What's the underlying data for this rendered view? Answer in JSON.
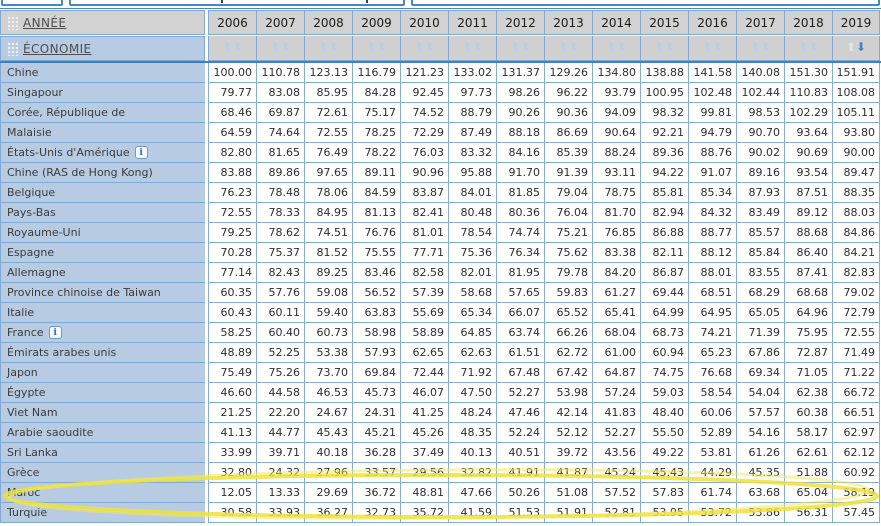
{
  "table": {
    "annee_label": "ANNÉE",
    "economie_label": "ÉCONOMIE",
    "years": [
      "2006",
      "2007",
      "2008",
      "2009",
      "2010",
      "2011",
      "2012",
      "2013",
      "2014",
      "2015",
      "2016",
      "2017",
      "2018",
      "2019"
    ],
    "sort": {
      "active_year": "2019",
      "direction": "desc"
    },
    "info_icon_label": "i",
    "rows": [
      {
        "label": "Chine",
        "info": false,
        "values": [
          "100.00",
          "110.78",
          "123.13",
          "116.79",
          "121.23",
          "133.02",
          "131.37",
          "129.26",
          "134.80",
          "138.88",
          "141.58",
          "140.08",
          "151.30",
          "151.91"
        ]
      },
      {
        "label": "Singapour",
        "info": false,
        "values": [
          "79.77",
          "83.08",
          "85.95",
          "84.28",
          "92.45",
          "97.73",
          "98.26",
          "96.22",
          "93.79",
          "100.95",
          "102.48",
          "102.44",
          "110.83",
          "108.08"
        ]
      },
      {
        "label": "Corée, République de",
        "info": false,
        "values": [
          "68.46",
          "69.87",
          "72.61",
          "75.17",
          "74.52",
          "88.79",
          "90.26",
          "90.36",
          "94.09",
          "98.32",
          "99.81",
          "98.53",
          "102.29",
          "105.11"
        ]
      },
      {
        "label": "Malaisie",
        "info": false,
        "values": [
          "64.59",
          "74.64",
          "72.55",
          "78.25",
          "72.29",
          "87.49",
          "88.18",
          "86.69",
          "90.64",
          "92.21",
          "94.79",
          "90.70",
          "93.64",
          "93.80"
        ]
      },
      {
        "label": "États-Unis d'Amérique",
        "info": true,
        "values": [
          "82.80",
          "81.65",
          "76.49",
          "78.22",
          "76.03",
          "83.32",
          "84.16",
          "85.39",
          "88.24",
          "89.36",
          "88.76",
          "90.02",
          "90.69",
          "90.00"
        ]
      },
      {
        "label": "Chine (RAS de Hong Kong)",
        "info": false,
        "values": [
          "83.88",
          "89.86",
          "97.65",
          "89.11",
          "90.96",
          "95.88",
          "91.70",
          "91.39",
          "93.11",
          "94.22",
          "91.07",
          "89.16",
          "93.54",
          "89.47"
        ]
      },
      {
        "label": "Belgique",
        "info": false,
        "values": [
          "76.23",
          "78.48",
          "78.06",
          "84.59",
          "83.87",
          "84.01",
          "81.85",
          "79.04",
          "78.75",
          "85.81",
          "85.34",
          "87.93",
          "87.51",
          "88.35"
        ]
      },
      {
        "label": "Pays-Bas",
        "info": false,
        "values": [
          "72.55",
          "78.33",
          "84.95",
          "81.13",
          "82.41",
          "80.48",
          "80.36",
          "76.04",
          "81.70",
          "82.94",
          "84.32",
          "83.49",
          "89.12",
          "88.03"
        ]
      },
      {
        "label": "Royaume-Uni",
        "info": false,
        "values": [
          "79.25",
          "78.62",
          "74.51",
          "76.76",
          "81.01",
          "78.54",
          "74.74",
          "75.21",
          "76.85",
          "86.88",
          "88.77",
          "85.57",
          "88.68",
          "84.86"
        ]
      },
      {
        "label": "Espagne",
        "info": false,
        "values": [
          "70.28",
          "75.37",
          "81.52",
          "75.55",
          "77.71",
          "75.36",
          "76.34",
          "75.62",
          "83.38",
          "82.11",
          "88.12",
          "85.84",
          "86.40",
          "84.21"
        ]
      },
      {
        "label": "Allemagne",
        "info": false,
        "values": [
          "77.14",
          "82.43",
          "89.25",
          "83.46",
          "82.58",
          "82.01",
          "81.95",
          "79.78",
          "84.20",
          "86.87",
          "88.01",
          "83.55",
          "87.41",
          "82.83"
        ]
      },
      {
        "label": "Province chinoise de Taiwan",
        "info": false,
        "values": [
          "60.35",
          "57.76",
          "59.08",
          "56.52",
          "57.39",
          "58.68",
          "57.65",
          "59.83",
          "61.27",
          "69.44",
          "68.51",
          "68.29",
          "68.68",
          "79.02"
        ]
      },
      {
        "label": "Italie",
        "info": false,
        "values": [
          "60.43",
          "60.11",
          "59.40",
          "63.83",
          "55.69",
          "65.34",
          "66.07",
          "65.52",
          "65.41",
          "64.99",
          "64.95",
          "65.05",
          "64.96",
          "72.79"
        ]
      },
      {
        "label": "France",
        "info": true,
        "values": [
          "58.25",
          "60.40",
          "60.73",
          "58.98",
          "58.89",
          "64.85",
          "63.74",
          "66.26",
          "68.04",
          "68.73",
          "74.21",
          "71.39",
          "75.95",
          "72.55"
        ]
      },
      {
        "label": "Émirats arabes unis",
        "info": false,
        "values": [
          "48.89",
          "52.25",
          "53.38",
          "57.93",
          "62.65",
          "62.63",
          "61.51",
          "62.72",
          "61.00",
          "60.94",
          "65.23",
          "67.86",
          "72.87",
          "71.49"
        ]
      },
      {
        "label": "Japon",
        "info": false,
        "values": [
          "75.49",
          "75.26",
          "73.70",
          "69.84",
          "72.44",
          "71.92",
          "67.48",
          "67.42",
          "64.87",
          "74.75",
          "76.68",
          "69.34",
          "71.05",
          "71.22"
        ]
      },
      {
        "label": "Égypte",
        "info": false,
        "values": [
          "46.60",
          "44.58",
          "46.53",
          "45.73",
          "46.07",
          "47.50",
          "52.27",
          "53.98",
          "57.24",
          "59.03",
          "58.54",
          "54.04",
          "62.38",
          "66.72"
        ]
      },
      {
        "label": "Viet Nam",
        "info": false,
        "values": [
          "21.25",
          "22.20",
          "24.67",
          "24.31",
          "41.25",
          "48.24",
          "47.46",
          "42.14",
          "41.83",
          "48.40",
          "60.06",
          "57.57",
          "60.38",
          "66.51"
        ]
      },
      {
        "label": "Arabie saoudite",
        "info": false,
        "values": [
          "41.13",
          "44.77",
          "45.43",
          "45.21",
          "45.26",
          "48.35",
          "52.24",
          "52.12",
          "52.27",
          "55.50",
          "52.89",
          "54.16",
          "58.17",
          "62.97"
        ]
      },
      {
        "label": "Sri Lanka",
        "info": false,
        "values": [
          "33.99",
          "39.71",
          "40.18",
          "36.28",
          "37.49",
          "40.13",
          "40.51",
          "39.72",
          "43.56",
          "49.22",
          "53.81",
          "61.26",
          "62.61",
          "62.12"
        ]
      },
      {
        "label": "Grèce",
        "info": false,
        "values": [
          "32.80",
          "24.32",
          "27.96",
          "33.57",
          "29.56",
          "32.82",
          "41.91",
          "41.87",
          "45.24",
          "45.43",
          "44.29",
          "45.35",
          "51.88",
          "60.92"
        ]
      },
      {
        "label": "Maroc",
        "info": false,
        "values": [
          "12.05",
          "13.33",
          "29.69",
          "36.72",
          "48.81",
          "47.66",
          "50.26",
          "51.08",
          "57.52",
          "57.83",
          "61.74",
          "63.68",
          "65.04",
          "58.19"
        ]
      },
      {
        "label": "Turquie",
        "info": false,
        "values": [
          "30.58",
          "33.93",
          "36.27",
          "32.73",
          "35.72",
          "41.59",
          "51.53",
          "51.91",
          "52.81",
          "53.95",
          "53.72",
          "53.86",
          "56.31",
          "57.45"
        ]
      }
    ],
    "highlighted_row": "Maroc"
  },
  "icons": {
    "sort_up": "⬆",
    "sort_down": "⬇",
    "drag_handle": "dot-grid",
    "info": "i"
  },
  "colors": {
    "header_gray": "#d2d2d2",
    "row_header_blue": "#b7cbe3",
    "grid_blue": "#85add8",
    "accent_border_blue": "#4a86c4",
    "sort_active_blue": "#4585c6",
    "sort_idle_blue": "#b7cfe7",
    "highlight_yellow": "#efe23a"
  }
}
